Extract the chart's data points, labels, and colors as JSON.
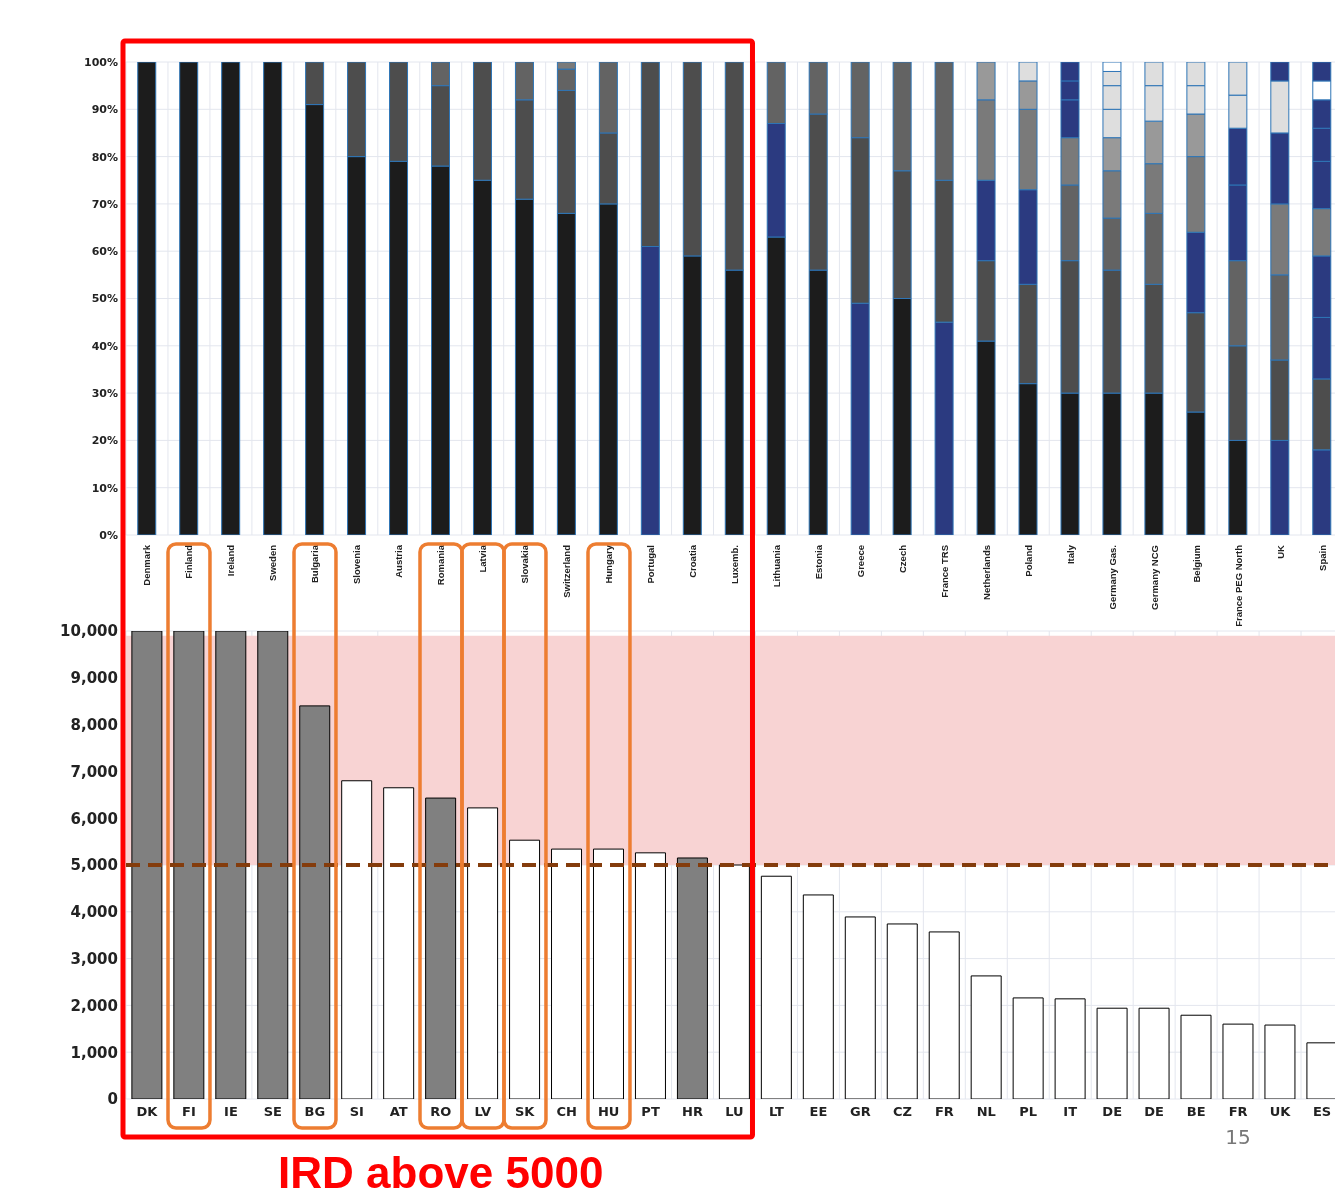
{
  "chart_data": [
    {
      "type": "bar",
      "stacked": true,
      "grid": true,
      "categories": [
        "Denmark",
        "Finland",
        "Ireland",
        "Sweden",
        "Bulgaria",
        "Slovenia",
        "Austria",
        "Romania",
        "Latvia",
        "Slovakia",
        "Switzerland",
        "Hungary",
        "Portugal",
        "Croatia",
        "Luxemb.",
        "Lithuania",
        "Estonia",
        "Greece",
        "Czech",
        "France TRS",
        "Netherlands",
        "Poland",
        "Italy",
        "Germany Gas.",
        "Germany NCG",
        "Belgium",
        "France PEG North",
        "UK",
        "Spain"
      ],
      "ylim": [
        0,
        100
      ],
      "yticks": [
        {
          "value": 0,
          "label": "0%"
        },
        {
          "value": 10,
          "label": "10%"
        },
        {
          "value": 20,
          "label": "20%"
        },
        {
          "value": 30,
          "label": "30%"
        },
        {
          "value": 40,
          "label": "40%"
        },
        {
          "value": 50,
          "label": "50%"
        },
        {
          "value": 60,
          "label": "60%"
        },
        {
          "value": 70,
          "label": "70%"
        },
        {
          "value": 80,
          "label": "80%"
        },
        {
          "value": 90,
          "label": "90%"
        },
        {
          "value": 100,
          "label": "100%"
        }
      ],
      "series": [
        {
          "values": [
            100,
            100,
            100,
            100,
            91,
            80,
            79,
            78,
            75,
            71,
            68,
            70,
            61,
            59,
            56,
            63,
            56,
            49,
            50,
            45,
            41,
            32,
            30,
            30,
            30,
            26,
            20,
            20,
            18
          ],
          "colors": [
            "#1c1c1c",
            "#1c1c1c",
            "#1c1c1c",
            "#1c1c1c",
            "#1c1c1c",
            "#1c1c1c",
            "#1c1c1c",
            "#1c1c1c",
            "#1c1c1c",
            "#1c1c1c",
            "#1c1c1c",
            "#1c1c1c",
            "#2b3a80",
            "#1c1c1c",
            "#1c1c1c",
            "#1c1c1c",
            "#1c1c1c",
            "#2b3a80",
            "#1c1c1c",
            "#2b3a80",
            "#1c1c1c",
            "#1c1c1c",
            "#1c1c1c",
            "#1c1c1c",
            "#1c1c1c",
            "#1c1c1c",
            "#1c1c1c",
            "#2b3a80",
            "#2b3a80"
          ]
        },
        {
          "values": [
            null,
            null,
            null,
            null,
            9,
            20,
            21,
            17,
            25,
            21,
            26,
            15,
            39,
            41,
            44,
            24,
            33,
            35,
            27,
            30,
            17,
            21,
            28,
            26,
            23,
            21,
            20,
            17,
            15
          ],
          "colors": [
            null,
            null,
            null,
            null,
            "#4d4d4d",
            "#4d4d4d",
            "#4d4d4d",
            "#4d4d4d",
            "#4d4d4d",
            "#4d4d4d",
            "#4d4d4d",
            "#4d4d4d",
            "#4d4d4d",
            "#4d4d4d",
            "#4d4d4d",
            "#2b3a80",
            "#4d4d4d",
            "#4d4d4d",
            "#4d4d4d",
            "#4d4d4d",
            "#4d4d4d",
            "#4d4d4d",
            "#4d4d4d",
            "#4d4d4d",
            "#4d4d4d",
            "#4d4d4d",
            "#4d4d4d",
            "#4d4d4d",
            "#4d4d4d"
          ]
        },
        {
          "values": [
            null,
            null,
            null,
            null,
            null,
            null,
            null,
            5,
            null,
            8,
            4.5,
            15,
            null,
            null,
            null,
            13,
            11,
            16,
            23,
            25,
            17,
            20,
            16,
            11,
            15,
            17,
            18,
            18,
            13
          ],
          "colors": [
            null,
            null,
            null,
            null,
            null,
            null,
            null,
            "#636363",
            null,
            "#636363",
            "#636363",
            "#636363",
            null,
            null,
            null,
            "#636363",
            "#636363",
            "#636363",
            "#636363",
            "#636363",
            "#2b3a80",
            "#2b3a80",
            "#636363",
            "#636363",
            "#636363",
            "#2b3a80",
            "#636363",
            "#636363",
            "#2b3a80"
          ]
        },
        {
          "values": [
            null,
            null,
            null,
            null,
            null,
            null,
            null,
            null,
            null,
            null,
            1.5,
            null,
            null,
            null,
            null,
            null,
            null,
            null,
            null,
            null,
            17,
            17,
            10,
            10,
            10.5,
            16,
            16,
            15,
            13
          ],
          "colors": [
            null,
            null,
            null,
            null,
            null,
            null,
            null,
            null,
            null,
            null,
            "#7a7a7a",
            null,
            null,
            null,
            null,
            null,
            null,
            null,
            null,
            null,
            "#7a7a7a",
            "#7a7a7a",
            "#7a7a7a",
            "#7a7a7a",
            "#7a7a7a",
            "#7a7a7a",
            "#2b3a80",
            "#7a7a7a",
            "#2b3a80"
          ]
        },
        {
          "values": [
            null,
            null,
            null,
            null,
            null,
            null,
            null,
            null,
            null,
            null,
            null,
            null,
            null,
            null,
            null,
            null,
            null,
            null,
            null,
            null,
            8,
            6,
            8,
            7,
            9,
            9,
            12,
            15,
            10
          ],
          "colors": [
            null,
            null,
            null,
            null,
            null,
            null,
            null,
            null,
            null,
            null,
            null,
            null,
            null,
            null,
            null,
            null,
            null,
            null,
            null,
            null,
            "#999999",
            "#999999",
            "#2b3a80",
            "#999999",
            "#999999",
            "#999999",
            "#2b3a80",
            "#2b3a80",
            "#7a7a7a"
          ]
        },
        {
          "values": [
            null,
            null,
            null,
            null,
            null,
            null,
            null,
            null,
            null,
            null,
            null,
            null,
            null,
            null,
            null,
            null,
            null,
            null,
            null,
            null,
            null,
            4,
            4,
            6,
            7.5,
            6,
            7,
            11,
            10
          ],
          "colors": [
            null,
            null,
            null,
            null,
            null,
            null,
            null,
            null,
            null,
            null,
            null,
            null,
            null,
            null,
            null,
            null,
            null,
            null,
            null,
            null,
            null,
            "#dedede",
            "#2b3a80",
            "#dedede",
            "#dedede",
            "#dedede",
            "#dedede",
            "#dedede",
            "#2b3a80"
          ]
        },
        {
          "values": [
            null,
            null,
            null,
            null,
            null,
            null,
            null,
            null,
            null,
            null,
            null,
            null,
            null,
            null,
            null,
            null,
            null,
            null,
            null,
            null,
            null,
            null,
            4,
            5,
            5,
            5,
            7,
            4,
            7
          ],
          "colors": [
            null,
            null,
            null,
            null,
            null,
            null,
            null,
            null,
            null,
            null,
            null,
            null,
            null,
            null,
            null,
            null,
            null,
            null,
            null,
            null,
            null,
            null,
            "#2b3a80",
            "#dedede",
            "#dedede",
            "#dedede",
            "#dedede",
            "#2b3a80",
            "#2b3a80"
          ]
        },
        {
          "values": [
            null,
            null,
            null,
            null,
            null,
            null,
            null,
            null,
            null,
            null,
            null,
            null,
            null,
            null,
            null,
            null,
            null,
            null,
            null,
            null,
            null,
            null,
            null,
            3,
            null,
            null,
            null,
            null,
            6
          ],
          "colors": [
            null,
            null,
            null,
            null,
            null,
            null,
            null,
            null,
            null,
            null,
            null,
            null,
            null,
            null,
            null,
            null,
            null,
            null,
            null,
            null,
            null,
            null,
            null,
            "#dedede",
            null,
            null,
            null,
            null,
            "#2b3a80"
          ]
        },
        {
          "values": [
            null,
            null,
            null,
            null,
            null,
            null,
            null,
            null,
            null,
            null,
            null,
            null,
            null,
            null,
            null,
            null,
            null,
            null,
            null,
            null,
            null,
            null,
            null,
            2,
            null,
            null,
            null,
            null,
            4
          ],
          "colors": [
            null,
            null,
            null,
            null,
            null,
            null,
            null,
            null,
            null,
            null,
            null,
            null,
            null,
            null,
            null,
            null,
            null,
            null,
            null,
            null,
            null,
            null,
            null,
            "#ffffff",
            null,
            null,
            null,
            null,
            "#ffffff"
          ]
        },
        {
          "values": [
            null,
            null,
            null,
            null,
            null,
            null,
            null,
            null,
            null,
            null,
            null,
            null,
            null,
            null,
            null,
            null,
            null,
            null,
            null,
            null,
            null,
            null,
            null,
            null,
            null,
            null,
            null,
            null,
            4
          ],
          "colors": [
            null,
            null,
            null,
            null,
            null,
            null,
            null,
            null,
            null,
            null,
            null,
            null,
            null,
            null,
            null,
            null,
            null,
            null,
            null,
            null,
            null,
            null,
            null,
            null,
            null,
            null,
            null,
            null,
            "#2b3a80"
          ]
        }
      ]
    },
    {
      "type": "bar",
      "grid": true,
      "categories": [
        "DK",
        "FI",
        "IE",
        "SE",
        "BG",
        "SI",
        "AT",
        "RO",
        "LV",
        "SK",
        "CH",
        "HU",
        "PT",
        "HR",
        "LU",
        "LT",
        "EE",
        "GR",
        "CZ",
        "FR",
        "NL",
        "PL",
        "IT",
        "DE",
        "DE",
        "BE",
        "FR",
        "UK",
        "ES"
      ],
      "values": [
        10000,
        10000,
        10000,
        10000,
        8400,
        6800,
        6650,
        6430,
        6220,
        5530,
        5340,
        5340,
        5260,
        5150,
        5000,
        4760,
        4360,
        3890,
        3740,
        3570,
        2630,
        2160,
        2140,
        1940,
        1940,
        1790,
        1600,
        1580,
        1200
      ],
      "colors": [
        "#808080",
        "#808080",
        "#808080",
        "#808080",
        "#808080",
        "#ffffff",
        "#ffffff",
        "#808080",
        "#ffffff",
        "#ffffff",
        "#ffffff",
        "#ffffff",
        "#ffffff",
        "#808080",
        "#ffffff",
        "#ffffff",
        "#ffffff",
        "#ffffff",
        "#ffffff",
        "#ffffff",
        "#ffffff",
        "#ffffff",
        "#ffffff",
        "#ffffff",
        "#ffffff",
        "#ffffff",
        "#ffffff",
        "#ffffff",
        "#ffffff"
      ],
      "ylim": [
        0,
        10000
      ],
      "yticks": [
        0,
        {
          "value": 1000,
          "label": "1,000"
        },
        {
          "value": 2000,
          "label": "2,000"
        },
        {
          "value": 3000,
          "label": "3,000"
        },
        {
          "value": 4000,
          "label": "4,000"
        },
        {
          "value": 5000,
          "label": "5,000"
        },
        {
          "value": 6000,
          "label": "6,000"
        },
        {
          "value": 7000,
          "label": "7,000"
        },
        {
          "value": 8000,
          "label": "8,000"
        },
        {
          "value": 9000,
          "label": "9,000"
        },
        {
          "value": 10000,
          "label": "10,000"
        }
      ],
      "ref_lines": [
        {
          "axis": "y",
          "value": 5000,
          "color": "#843c0c",
          "line_style": "dashed"
        }
      ],
      "bands": [
        {
          "axis": "y",
          "from": 5000,
          "to": 9900,
          "color": "#f8d3d3"
        }
      ],
      "annotations": [
        "IRD above 5000",
        "15"
      ]
    }
  ]
}
